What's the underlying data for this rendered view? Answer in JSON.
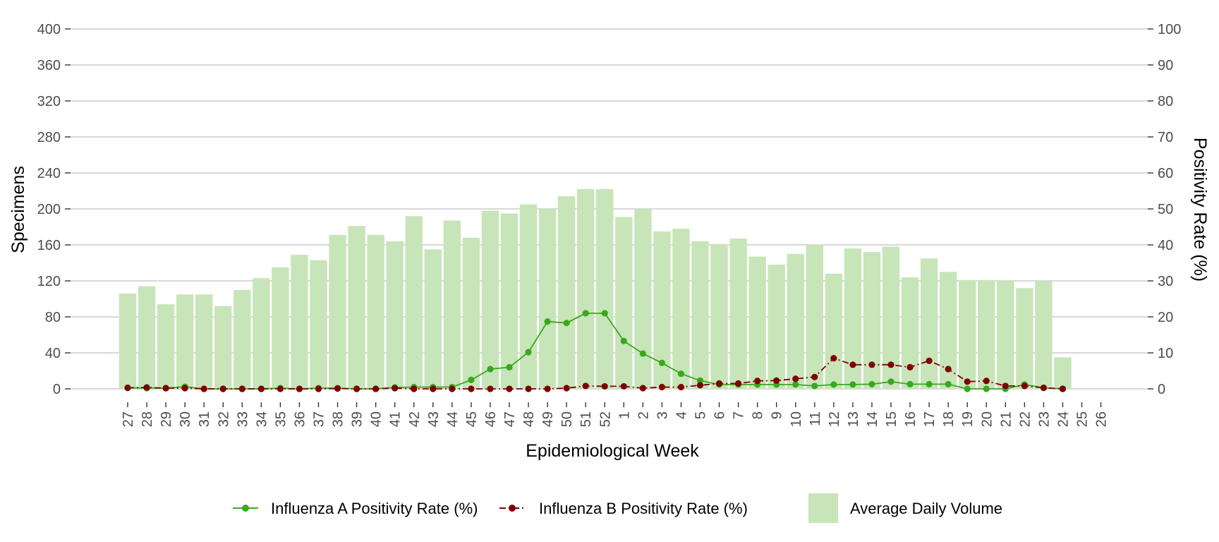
{
  "chart_data": {
    "type": "bar",
    "title": "",
    "xlabel": "Epidemiological Week",
    "ylabel": "Specimens",
    "y2label": "Positivity Rate (%)",
    "ylim": [
      0,
      400
    ],
    "y2lim": [
      0,
      100
    ],
    "yticks": [
      "0",
      "40",
      "80",
      "120",
      "160",
      "200",
      "240",
      "280",
      "320",
      "360",
      "400"
    ],
    "y2ticks": [
      "0",
      "10",
      "20",
      "30",
      "40",
      "50",
      "60",
      "70",
      "80",
      "90",
      "100"
    ],
    "grid": true,
    "legend_position": "bottom",
    "categories": [
      "27",
      "28",
      "29",
      "30",
      "31",
      "32",
      "33",
      "34",
      "35",
      "36",
      "37",
      "38",
      "39",
      "40",
      "41",
      "42",
      "43",
      "44",
      "45",
      "46",
      "47",
      "48",
      "49",
      "50",
      "51",
      "52",
      "1",
      "2",
      "3",
      "4",
      "5",
      "6",
      "7",
      "8",
      "9",
      "10",
      "11",
      "12",
      "13",
      "14",
      "15",
      "16",
      "17",
      "18",
      "19",
      "20",
      "21",
      "22",
      "23",
      "24",
      "25",
      "26"
    ],
    "series": [
      {
        "name": "Average Daily Volume",
        "type": "bar",
        "axis": "left",
        "color": "#c7e5b9",
        "values": [
          106,
          114,
          94,
          105,
          105,
          92,
          110,
          123,
          135,
          149,
          143,
          171,
          181,
          171,
          164,
          192,
          155,
          187,
          168,
          198,
          195,
          205,
          200,
          214,
          222,
          222,
          191,
          200,
          175,
          178,
          164,
          161,
          167,
          147,
          138,
          150,
          160,
          128,
          156,
          152,
          158,
          124,
          145,
          130,
          121,
          121,
          120,
          112,
          120,
          35,
          null,
          null
        ]
      },
      {
        "name": "Influenza A Positivity Rate (%)",
        "type": "line",
        "axis": "right",
        "color": "#3aa81c",
        "values": [
          0.3,
          0.2,
          0.2,
          0.6,
          0.0,
          0.0,
          0.0,
          0.0,
          0.2,
          0.0,
          0.2,
          0.2,
          0.0,
          0.0,
          0.4,
          0.5,
          0.5,
          0.5,
          2.5,
          5.5,
          6.0,
          10.2,
          18.7,
          18.3,
          21.0,
          21.0,
          13.3,
          9.8,
          7.2,
          4.2,
          2.3,
          1.2,
          1.2,
          1.2,
          1.2,
          1.2,
          0.8,
          1.2,
          1.2,
          1.3,
          2.0,
          1.3,
          1.3,
          1.3,
          0.0,
          0.0,
          0.0,
          1.2,
          0.3,
          0.0,
          null,
          null
        ]
      },
      {
        "name": "Influenza B Positivity Rate (%)",
        "type": "line",
        "axis": "right",
        "color": "#7f0000",
        "dash": "dot-dash",
        "values": [
          0.3,
          0.4,
          0.2,
          0.2,
          0.0,
          0.0,
          0.0,
          0.0,
          0.0,
          0.0,
          0.0,
          0.1,
          0.0,
          0.0,
          0.2,
          0.0,
          0.0,
          0.0,
          0.0,
          0.0,
          0.0,
          0.0,
          0.0,
          0.2,
          0.8,
          0.7,
          0.7,
          0.2,
          0.5,
          0.5,
          1.0,
          1.5,
          1.5,
          2.2,
          2.3,
          2.8,
          3.3,
          8.5,
          6.7,
          6.7,
          6.7,
          6.0,
          7.8,
          5.5,
          2.0,
          2.2,
          0.8,
          0.8,
          0.3,
          0.0,
          null,
          null
        ]
      }
    ]
  }
}
